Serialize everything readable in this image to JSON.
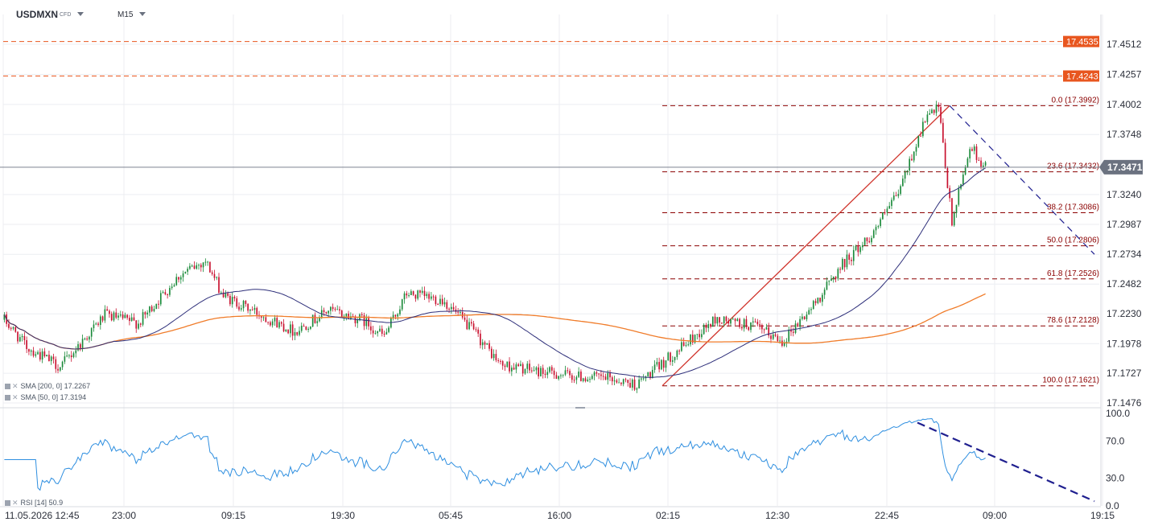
{
  "toolbar": {
    "symbol": "USDMXN",
    "symbol_type": "CFD",
    "timeframe": "M15"
  },
  "colors": {
    "up": "#1b8a3a",
    "down": "#c8102e",
    "sma200": "#f07c2a",
    "sma50": "#2e2f7a",
    "fib": "#8b0000",
    "hline": "#e8561f",
    "rsi": "#2f8fe0",
    "trend": "#1f1f8f"
  },
  "chart_data": [
    {
      "type": "candlestick",
      "symbol": "USDMXN",
      "timeframe": "M15",
      "ylim": [
        17.1476,
        17.47
      ],
      "y_ticks": [
        "17.4512",
        "17.4257",
        "17.4002",
        "17.3748",
        "17.3240",
        "17.2987",
        "17.2734",
        "17.2482",
        "17.2230",
        "17.1978",
        "17.1727",
        "17.1476"
      ],
      "x_ticks": [
        "11.05.2026 12:45",
        "23:00",
        "09:15",
        "19:30",
        "05:45",
        "16:00",
        "02:15",
        "12:30",
        "22:45",
        "09:00",
        "19:15"
      ],
      "last_price": "17.3471",
      "price_levels": [
        {
          "label": "17.4535",
          "value": 17.4535
        },
        {
          "label": "17.4243",
          "value": 17.4243
        }
      ],
      "fibonacci": [
        {
          "label": "0.0 (17.3992)",
          "value": 17.3992
        },
        {
          "label": "23.6 (17.3432)",
          "value": 17.3432
        },
        {
          "label": "38.2 (17.3086)",
          "value": 17.3086
        },
        {
          "label": "50.0 (17.2806)",
          "value": 17.2806
        },
        {
          "label": "61.8 (17.2526)",
          "value": 17.2526
        },
        {
          "label": "78.6 (17.2128)",
          "value": 17.2128
        },
        {
          "label": "100.0 (17.1621)",
          "value": 17.1621
        }
      ],
      "indicators": [
        {
          "name": "SMA [200, 0]",
          "value": "17.2267"
        },
        {
          "name": "SMA [50, 0]",
          "value": "17.3194"
        }
      ],
      "series_key_points": [
        {
          "t": 0,
          "close": 17.218
        },
        {
          "t": 10,
          "close": 17.195
        },
        {
          "t": 25,
          "close": 17.178
        },
        {
          "t": 45,
          "close": 17.222
        },
        {
          "t": 60,
          "close": 17.215
        },
        {
          "t": 78,
          "close": 17.255
        },
        {
          "t": 90,
          "close": 17.268
        },
        {
          "t": 98,
          "close": 17.238
        },
        {
          "t": 115,
          "close": 17.222
        },
        {
          "t": 130,
          "close": 17.208
        },
        {
          "t": 145,
          "close": 17.226
        },
        {
          "t": 160,
          "close": 17.218
        },
        {
          "t": 170,
          "close": 17.204
        },
        {
          "t": 180,
          "close": 17.24
        },
        {
          "t": 196,
          "close": 17.235
        },
        {
          "t": 210,
          "close": 17.208
        },
        {
          "t": 222,
          "close": 17.18
        },
        {
          "t": 240,
          "close": 17.174
        },
        {
          "t": 256,
          "close": 17.17
        },
        {
          "t": 272,
          "close": 17.168
        },
        {
          "t": 283,
          "close": 17.163
        },
        {
          "t": 300,
          "close": 17.19
        },
        {
          "t": 318,
          "close": 17.218
        },
        {
          "t": 335,
          "close": 17.213
        },
        {
          "t": 348,
          "close": 17.2
        },
        {
          "t": 362,
          "close": 17.23
        },
        {
          "t": 375,
          "close": 17.265
        },
        {
          "t": 388,
          "close": 17.29
        },
        {
          "t": 400,
          "close": 17.325
        },
        {
          "t": 412,
          "close": 17.388
        },
        {
          "t": 418,
          "close": 17.397
        },
        {
          "t": 424,
          "close": 17.3
        },
        {
          "t": 432,
          "close": 17.365
        },
        {
          "t": 439,
          "close": 17.347
        }
      ]
    },
    {
      "type": "line",
      "name": "RSI [14]",
      "value": "50.9",
      "ylim": [
        0,
        100
      ],
      "y_ticks": [
        "100.0",
        "70.0",
        "30.0",
        "0.0"
      ]
    }
  ]
}
